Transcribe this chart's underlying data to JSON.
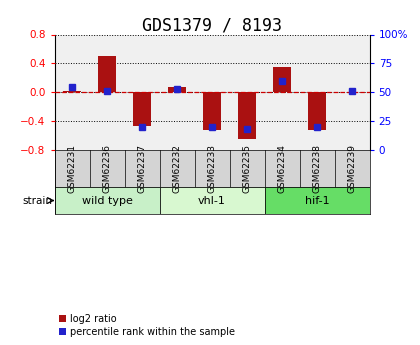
{
  "title": "GDS1379 / 8193",
  "samples": [
    "GSM62231",
    "GSM62236",
    "GSM62237",
    "GSM62232",
    "GSM62233",
    "GSM62235",
    "GSM62234",
    "GSM62238",
    "GSM62239"
  ],
  "log2_ratio": [
    0.02,
    0.5,
    -0.46,
    0.08,
    -0.52,
    -0.65,
    0.35,
    -0.52,
    0.01
  ],
  "percentile_rank": [
    55,
    51,
    20,
    53,
    20,
    18,
    60,
    20,
    51
  ],
  "groups": [
    {
      "label": "wild type",
      "start": 0,
      "end": 3,
      "color": "#c8f0c8"
    },
    {
      "label": "vhl-1",
      "start": 3,
      "end": 6,
      "color": "#d8f8d0"
    },
    {
      "label": "hif-1",
      "start": 6,
      "end": 9,
      "color": "#66dd66"
    }
  ],
  "ylim": [
    -0.8,
    0.8
  ],
  "yticks": [
    -0.8,
    -0.4,
    0.0,
    0.4,
    0.8
  ],
  "right_yticks": [
    0,
    25,
    50,
    75,
    100
  ],
  "right_ylim": [
    0,
    100
  ],
  "bar_color": "#aa1111",
  "dot_color": "#2222cc",
  "zero_line_color": "#cc0000",
  "grid_color": "#000000",
  "title_fontsize": 12,
  "tick_fontsize": 7.5,
  "label_fontsize": 7,
  "legend_red_label": "log2 ratio",
  "legend_blue_label": "percentile rank within the sample",
  "background_color": "#ffffff",
  "plot_bg_color": "#f0f0f0",
  "strain_label": "strain"
}
